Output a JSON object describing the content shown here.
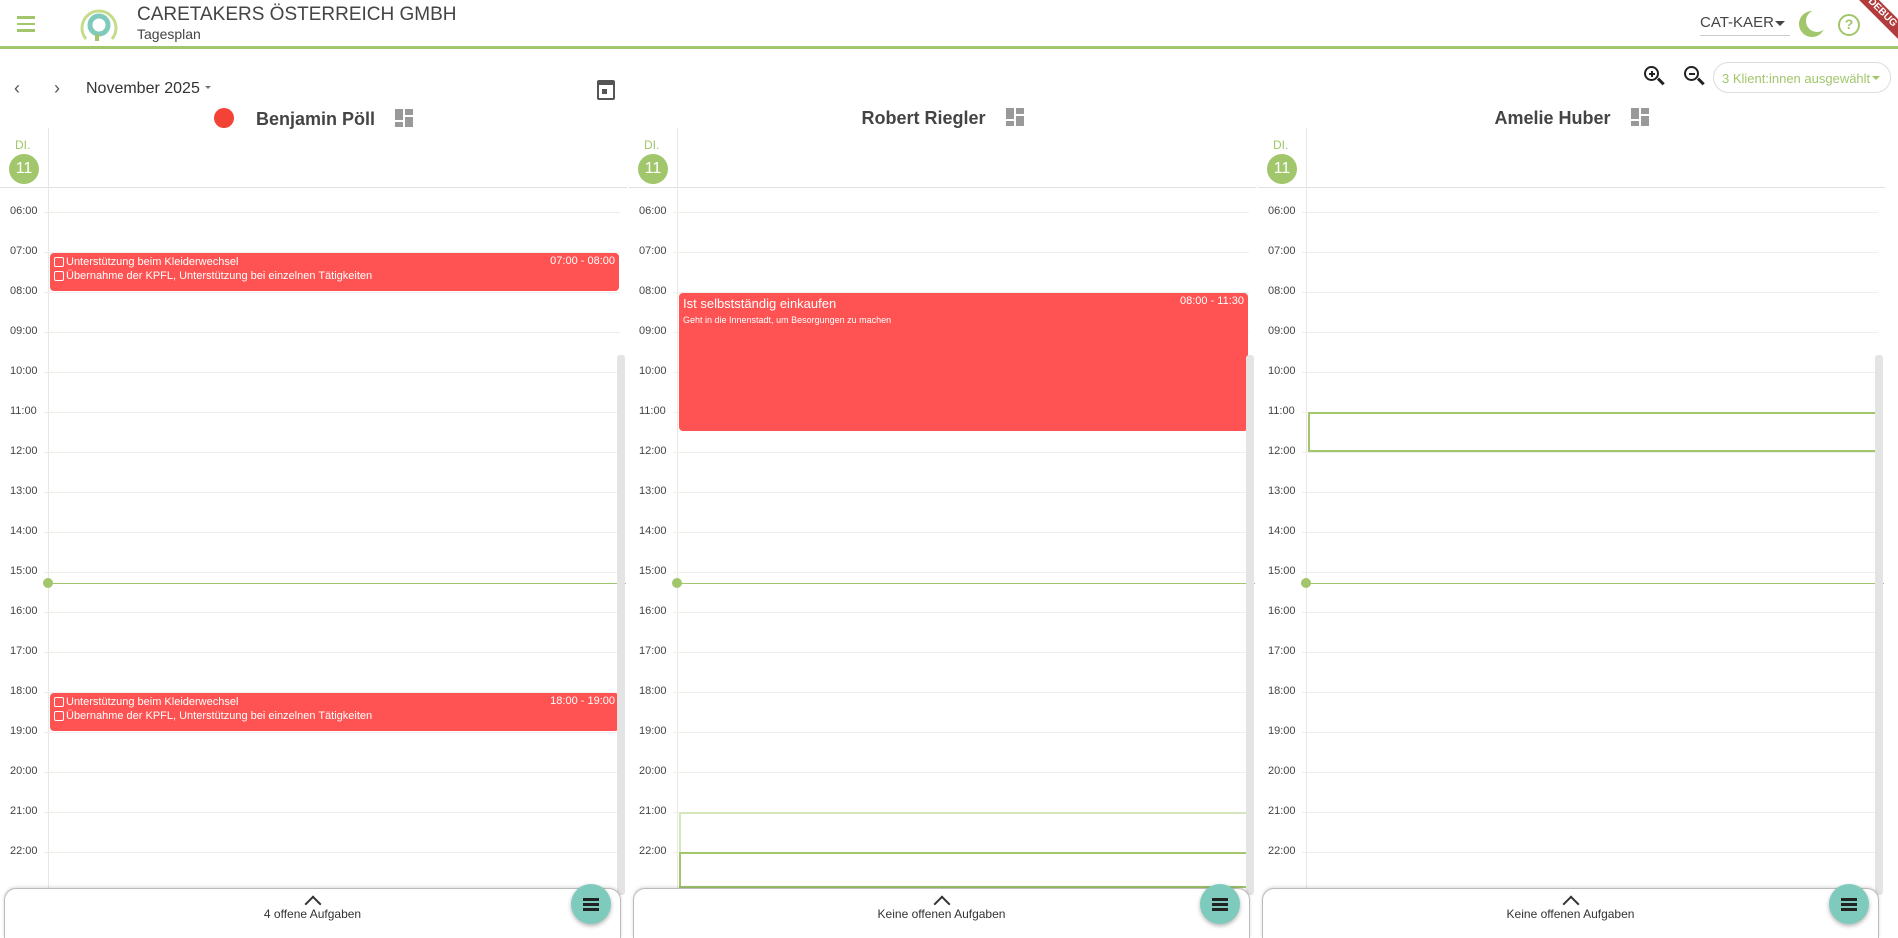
{
  "header": {
    "org": "CARETAKERS ÖSTERREICH GMBH",
    "subtitle": "Tagesplan",
    "tenant": "CAT-KAER",
    "debug_banner": "DEBUG",
    "accent": "#a1c66b"
  },
  "toolbar": {
    "month": "November 2025",
    "clients_select": "3 Klient:innen ausgewählt"
  },
  "hours": [
    "06:00",
    "07:00",
    "08:00",
    "09:00",
    "10:00",
    "11:00",
    "12:00",
    "13:00",
    "14:00",
    "15:00",
    "16:00",
    "17:00",
    "18:00",
    "19:00",
    "20:00",
    "21:00",
    "22:00"
  ],
  "now_time": "15:17",
  "columns": [
    {
      "name": "Benjamin Pöll",
      "status_dot": "#f44336",
      "day": "DI.",
      "date": "11",
      "events": [
        {
          "start": "07:00",
          "end": "08:00",
          "time": "07:00 - 08:00",
          "tasks": [
            "Unterstützung beim Kleiderwechsel",
            "Übernahme der KPFL, Unterstützung bei einzelnen Tätigkeiten"
          ]
        },
        {
          "start": "18:00",
          "end": "19:00",
          "time": "18:00 - 19:00",
          "tasks": [
            "Unterstützung beim Kleiderwechsel",
            "Übernahme der KPFL, Unterstützung bei einzelnen Tätigkeiten"
          ]
        }
      ],
      "slots": [],
      "tasks_label": "4 offene Aufgaben"
    },
    {
      "name": "Robert Riegler",
      "day": "DI.",
      "date": "11",
      "events": [
        {
          "start": "08:00",
          "end": "11:30",
          "time": "08:00 - 11:30",
          "title": "Ist selbstständig einkaufen",
          "description": "Geht in die Innenstadt, um Besorgungen zu machen"
        }
      ],
      "slots": [
        {
          "start": "21:00",
          "end": "22:00",
          "faint": true
        },
        {
          "start": "22:00",
          "end": "23:00"
        }
      ],
      "tasks_label": "Keine offenen Aufgaben"
    },
    {
      "name": "Amelie Huber",
      "day": "DI.",
      "date": "11",
      "events": [],
      "slots": [
        {
          "start": "11:00",
          "end": "12:00"
        }
      ],
      "tasks_label": "Keine offenen Aufgaben"
    }
  ]
}
